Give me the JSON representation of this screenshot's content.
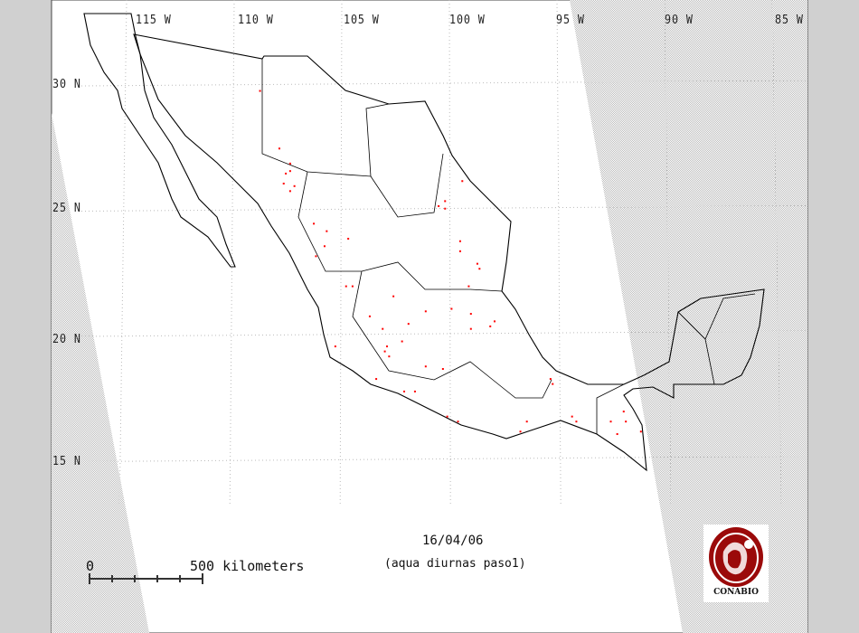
{
  "map": {
    "date": "16/04/06",
    "subtitle": "(aqua diurnas paso1)",
    "longitude_labels": [
      "115 W",
      "110 W",
      "105 W",
      "100 W",
      "95 W",
      "90 W",
      "85 W"
    ],
    "latitude_labels": [
      "30 N",
      "25 N",
      "20 N",
      "15 N"
    ],
    "scale_bar": {
      "start": "0",
      "end": "500 kilometers"
    },
    "logo": "CONABIO",
    "colors": {
      "hotspot": "#ff0000",
      "outline": "#000000",
      "logo": "#9b0a0a",
      "no_coverage_hatch": "#bdbdbd"
    },
    "hotspots_lonlat": [
      [
        -108.8,
        29.8
      ],
      [
        -107.9,
        27.5
      ],
      [
        -107.4,
        26.9
      ],
      [
        -107.4,
        26.6
      ],
      [
        -107.6,
        26.5
      ],
      [
        -107.7,
        26.1
      ],
      [
        -107.2,
        26.0
      ],
      [
        -107.4,
        25.8
      ],
      [
        -106.3,
        24.5
      ],
      [
        -105.7,
        24.2
      ],
      [
        -104.7,
        23.9
      ],
      [
        -105.8,
        23.6
      ],
      [
        -106.2,
        23.2
      ],
      [
        -100.2,
        25.4
      ],
      [
        -100.2,
        25.1
      ],
      [
        -100.5,
        25.2
      ],
      [
        -99.4,
        26.2
      ],
      [
        -99.5,
        23.8
      ],
      [
        -99.5,
        23.4
      ],
      [
        -98.7,
        22.9
      ],
      [
        -98.6,
        22.7
      ],
      [
        -99.1,
        22.0
      ],
      [
        -99.0,
        20.9
      ],
      [
        -104.8,
        22.0
      ],
      [
        -104.5,
        22.0
      ],
      [
        -103.7,
        20.8
      ],
      [
        -102.6,
        21.6
      ],
      [
        -103.1,
        20.3
      ],
      [
        -102.9,
        19.6
      ],
      [
        -102.8,
        19.2
      ],
      [
        -103.0,
        19.4
      ],
      [
        -101.9,
        20.5
      ],
      [
        -102.2,
        19.8
      ],
      [
        -101.1,
        18.8
      ],
      [
        -100.3,
        18.7
      ],
      [
        -101.1,
        21.0
      ],
      [
        -99.9,
        21.1
      ],
      [
        -99.0,
        20.3
      ],
      [
        -98.1,
        20.4
      ],
      [
        -97.9,
        20.6
      ],
      [
        -105.3,
        19.6
      ],
      [
        -103.4,
        18.3
      ],
      [
        -102.1,
        17.8
      ],
      [
        -101.6,
        17.8
      ],
      [
        -100.1,
        16.8
      ],
      [
        -99.6,
        16.6
      ],
      [
        -96.4,
        16.6
      ],
      [
        -96.7,
        16.2
      ],
      [
        -95.3,
        18.3
      ],
      [
        -95.2,
        18.1
      ],
      [
        -94.3,
        16.8
      ],
      [
        -94.1,
        16.6
      ],
      [
        -92.5,
        16.6
      ],
      [
        -91.9,
        17.0
      ],
      [
        -91.8,
        16.6
      ],
      [
        -92.2,
        16.1
      ],
      [
        -91.1,
        16.2
      ]
    ]
  }
}
